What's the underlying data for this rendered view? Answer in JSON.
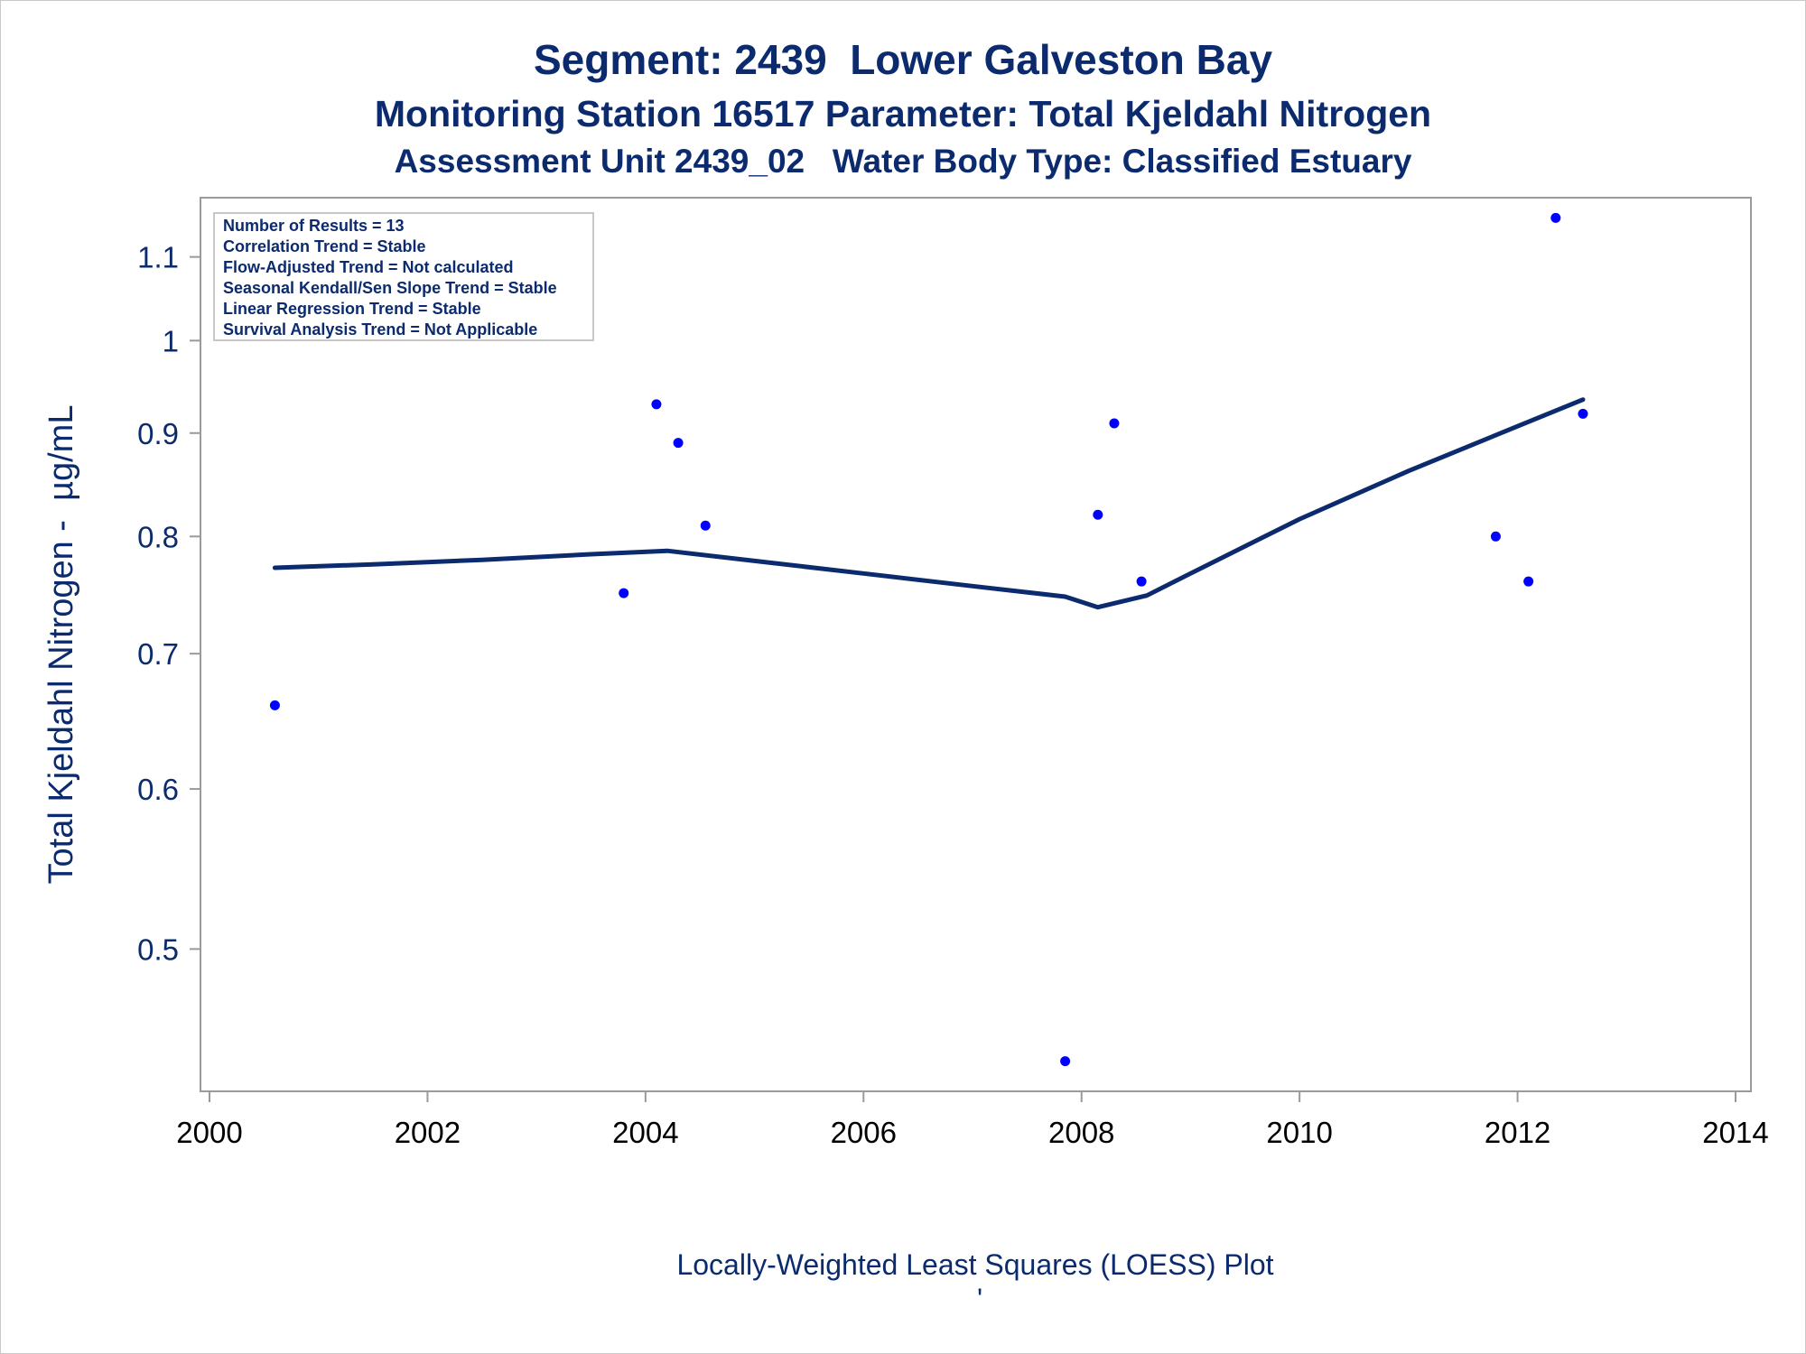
{
  "chart_data": {
    "type": "scatter",
    "title": "Segment: 2439  Lower Galveston Bay",
    "subtitle": "Monitoring Station 16517 Parameter: Total Kjeldahl Nitrogen",
    "subtitle2": "Assessment Unit 2439_02   Water Body Type: Classified Estuary",
    "xlabel": "",
    "ylabel": "Total Kjeldahl Nitrogen -  µg/mL",
    "footnote": "Locally-Weighted Least Squares (LOESS) Plot",
    "footnote_mark": "'",
    "y_scale": "log",
    "xlim": [
      2000,
      2014
    ],
    "ylim": [
      0.43,
      1.16
    ],
    "x_ticks": [
      2000,
      2002,
      2004,
      2006,
      2008,
      2010,
      2012,
      2014
    ],
    "y_ticks": [
      0.5,
      0.6,
      0.7,
      0.8,
      0.9,
      1,
      1.1
    ],
    "grid": false,
    "point_color": "#0000ff",
    "line_color": "#0b2b6e",
    "points": [
      {
        "x": 2000.6,
        "y": 0.66
      },
      {
        "x": 2003.8,
        "y": 0.75
      },
      {
        "x": 2004.1,
        "y": 0.93
      },
      {
        "x": 2004.3,
        "y": 0.89
      },
      {
        "x": 2004.55,
        "y": 0.81
      },
      {
        "x": 2007.85,
        "y": 0.44
      },
      {
        "x": 2008.15,
        "y": 0.82
      },
      {
        "x": 2008.3,
        "y": 0.91
      },
      {
        "x": 2008.55,
        "y": 0.76
      },
      {
        "x": 2011.8,
        "y": 0.8
      },
      {
        "x": 2012.1,
        "y": 0.76
      },
      {
        "x": 2012.35,
        "y": 1.15
      },
      {
        "x": 2012.6,
        "y": 0.92
      }
    ],
    "loess": [
      {
        "x": 2000.6,
        "y": 0.772
      },
      {
        "x": 2001.5,
        "y": 0.775
      },
      {
        "x": 2002.5,
        "y": 0.779
      },
      {
        "x": 2003.5,
        "y": 0.784
      },
      {
        "x": 2004.2,
        "y": 0.787
      },
      {
        "x": 2005.0,
        "y": 0.778
      },
      {
        "x": 2006.0,
        "y": 0.767
      },
      {
        "x": 2007.0,
        "y": 0.756
      },
      {
        "x": 2007.85,
        "y": 0.747
      },
      {
        "x": 2008.15,
        "y": 0.738
      },
      {
        "x": 2008.6,
        "y": 0.748
      },
      {
        "x": 2009.0,
        "y": 0.767
      },
      {
        "x": 2010.0,
        "y": 0.816
      },
      {
        "x": 2011.0,
        "y": 0.862
      },
      {
        "x": 2012.0,
        "y": 0.907
      },
      {
        "x": 2012.6,
        "y": 0.935
      }
    ]
  },
  "stats_box": [
    "Number of Results = 13",
    "Correlation Trend = Stable",
    "Flow-Adjusted Trend = Not calculated",
    "Seasonal Kendall/Sen Slope Trend = Stable",
    "Linear Regression Trend = Stable",
    "Survival Analysis Trend = Not Applicable"
  ]
}
